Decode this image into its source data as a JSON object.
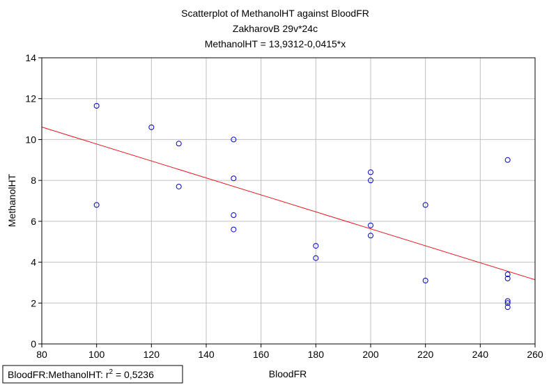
{
  "chart_data": {
    "type": "scatter",
    "title": "Scatterplot of MethanolHT against BloodFR",
    "subtitle": "ZakharovB 29v*24c",
    "equation": "MethanolHT = 13,9312-0,0415*x",
    "xlabel": "BloodFR",
    "ylabel": "MethanolHT",
    "xlim": [
      80,
      260
    ],
    "ylim": [
      0,
      14
    ],
    "xticks": [
      80,
      100,
      120,
      140,
      160,
      180,
      200,
      220,
      240,
      260
    ],
    "yticks": [
      0,
      2,
      4,
      6,
      8,
      10,
      12,
      14
    ],
    "grid": true,
    "points": [
      {
        "x": 100,
        "y": 11.65
      },
      {
        "x": 100,
        "y": 6.8
      },
      {
        "x": 120,
        "y": 10.6
      },
      {
        "x": 130,
        "y": 9.8
      },
      {
        "x": 130,
        "y": 7.7
      },
      {
        "x": 150,
        "y": 10.0
      },
      {
        "x": 150,
        "y": 8.1
      },
      {
        "x": 150,
        "y": 6.3
      },
      {
        "x": 150,
        "y": 5.6
      },
      {
        "x": 180,
        "y": 4.8
      },
      {
        "x": 180,
        "y": 4.2
      },
      {
        "x": 200,
        "y": 8.4
      },
      {
        "x": 200,
        "y": 8.0
      },
      {
        "x": 200,
        "y": 5.8
      },
      {
        "x": 200,
        "y": 5.3
      },
      {
        "x": 220,
        "y": 6.8
      },
      {
        "x": 220,
        "y": 3.1
      },
      {
        "x": 250,
        "y": 9.0
      },
      {
        "x": 250,
        "y": 3.4
      },
      {
        "x": 250,
        "y": 3.2
      },
      {
        "x": 250,
        "y": 2.1
      },
      {
        "x": 250,
        "y": 2.0
      },
      {
        "x": 250,
        "y": 1.8
      }
    ],
    "fit_line": {
      "intercept": 13.9312,
      "slope": -0.0415
    },
    "legend": {
      "prefix": "BloodFR:MethanolHT:  r",
      "superscript": "2",
      "suffix": " = 0,5236",
      "position": "bottom-left"
    },
    "colors": {
      "points": "#0000cc",
      "fit_line": "#e8141c",
      "grid": "#c0c0c0",
      "axis": "#000000"
    }
  }
}
